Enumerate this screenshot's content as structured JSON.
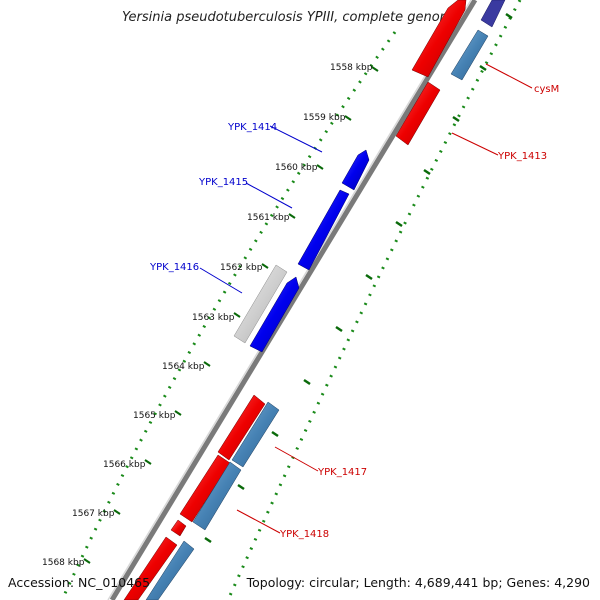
{
  "title": "Yersinia pseudotuberculosis YPIII, complete genome",
  "accession": "Accession: NC_010465",
  "summary": "Topology: circular; Length: 4,689,441 bp; Genes: 4,290",
  "kbp_labels": [
    "1558 kbp",
    "1559 kbp",
    "1560 kbp",
    "1561 kbp",
    "1562 kbp",
    "1563 kbp",
    "1564 kbp",
    "1565 kbp",
    "1566 kbp",
    "1567 kbp",
    "1568 kbp"
  ],
  "gene_labels": [
    {
      "text": "YPK_1414",
      "color": "#0000cc"
    },
    {
      "text": "YPK_1415",
      "color": "#0000cc"
    },
    {
      "text": "YPK_1416",
      "color": "#0000cc"
    },
    {
      "text": "cysM",
      "color": "#cc0000"
    },
    {
      "text": "YPK_1413",
      "color": "#cc0000"
    },
    {
      "text": "YPK_1417",
      "color": "#cc0000"
    },
    {
      "text": "YPK_1418",
      "color": "#cc0000"
    }
  ],
  "colors": {
    "backbone": "#7a7a7a",
    "forward_gene": "#0000ee",
    "reverse_gene": "#ee0000",
    "pseudo_gene": "#c8c8c8",
    "cds_steel": "#4682b4",
    "gc_dots": "#1a8a1a",
    "ticks": "#0a6a0a"
  }
}
